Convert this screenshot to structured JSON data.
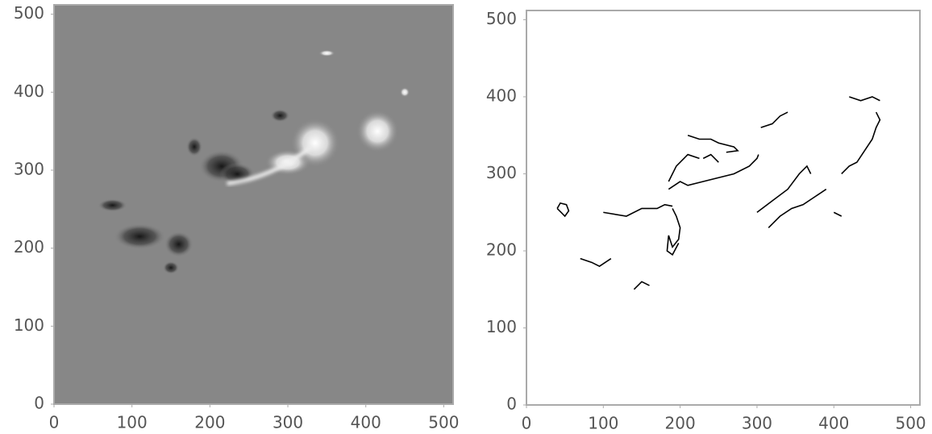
{
  "chart_data": [
    {
      "type": "image",
      "cmap": "gray",
      "xlim": [
        0,
        512
      ],
      "ylim": [
        0,
        512
      ],
      "xticks": [
        0,
        100,
        200,
        300,
        400,
        500
      ],
      "yticks": [
        0,
        100,
        200,
        300,
        400,
        500
      ]
    },
    {
      "type": "contour",
      "cmap": "binary",
      "xlim": [
        0,
        512
      ],
      "ylim": [
        0,
        512
      ],
      "xticks": [
        0,
        100,
        200,
        300,
        400,
        500
      ],
      "yticks": [
        0,
        100,
        200,
        300,
        400,
        500
      ]
    }
  ]
}
